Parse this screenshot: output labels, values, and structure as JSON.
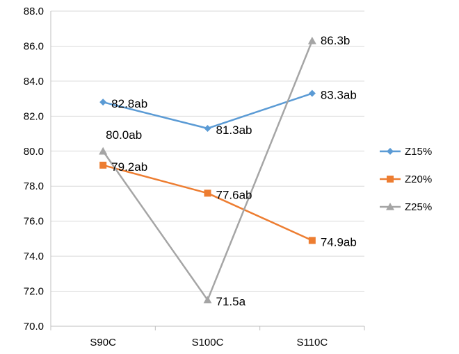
{
  "chart_data": {
    "type": "line",
    "categories": [
      "S90C",
      "S100C",
      "S110C"
    ],
    "ylim": [
      70,
      88
    ],
    "yticks": [
      70.0,
      72.0,
      74.0,
      76.0,
      78.0,
      80.0,
      82.0,
      84.0,
      86.0,
      88.0
    ],
    "grid": "horizontal",
    "legend_position": "right",
    "series": [
      {
        "name": "Z15%",
        "color": "#5B9BD5",
        "marker": "diamond",
        "values": [
          82.8,
          81.3,
          83.3
        ],
        "labels": [
          "82.8ab",
          "81.3ab",
          "83.3ab"
        ]
      },
      {
        "name": "Z20%",
        "color": "#ED7D31",
        "marker": "square",
        "values": [
          79.2,
          77.6,
          74.9
        ],
        "labels": [
          "79.2ab",
          "77.6ab",
          "74.9ab"
        ]
      },
      {
        "name": "Z25%",
        "color": "#A5A5A5",
        "marker": "triangle",
        "values": [
          80.0,
          71.5,
          86.3
        ],
        "labels": [
          "80.0ab",
          "71.5a",
          "86.3b"
        ]
      }
    ]
  }
}
